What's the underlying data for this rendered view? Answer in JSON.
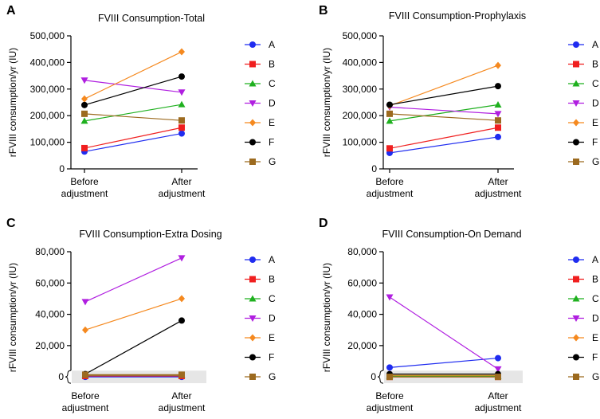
{
  "chart_data": [
    {
      "type": "line",
      "panel": "A",
      "title": "FVIII Consumption-Total",
      "ylabel": "rFVIII consumption/yr (IU)",
      "categories": [
        "Before\nadjustment",
        "After\nadjustment"
      ],
      "ylim": [
        0,
        500000
      ],
      "yticks": [
        0,
        100000,
        200000,
        300000,
        400000,
        500000
      ],
      "ytick_labels": [
        "0",
        "100,000",
        "200,000",
        "300,000",
        "400,000",
        "500,000"
      ],
      "series": [
        {
          "name": "A",
          "values": [
            65000,
            133000
          ]
        },
        {
          "name": "B",
          "values": [
            78000,
            155000
          ]
        },
        {
          "name": "C",
          "values": [
            180000,
            242000
          ]
        },
        {
          "name": "D",
          "values": [
            333000,
            288000
          ]
        },
        {
          "name": "E",
          "values": [
            263000,
            440000
          ]
        },
        {
          "name": "F",
          "values": [
            240000,
            347000
          ]
        },
        {
          "name": "G",
          "values": [
            207000,
            182000
          ]
        }
      ]
    },
    {
      "type": "line",
      "panel": "B",
      "title": "FVIII Consumption-Prophylaxis",
      "ylabel": "rFVIII consumption/yr (IU)",
      "categories": [
        "Before\nadjustment",
        "After\nadjustment"
      ],
      "ylim": [
        0,
        500000
      ],
      "yticks": [
        0,
        100000,
        200000,
        300000,
        400000,
        500000
      ],
      "ytick_labels": [
        "0",
        "100,000",
        "200,000",
        "300,000",
        "400,000",
        "500,000"
      ],
      "series": [
        {
          "name": "A",
          "values": [
            60000,
            120000
          ]
        },
        {
          "name": "B",
          "values": [
            77000,
            155000
          ]
        },
        {
          "name": "C",
          "values": [
            180000,
            241000
          ]
        },
        {
          "name": "D",
          "values": [
            232000,
            207000
          ]
        },
        {
          "name": "E",
          "values": [
            237000,
            389000
          ]
        },
        {
          "name": "F",
          "values": [
            241000,
            311000
          ]
        },
        {
          "name": "G",
          "values": [
            207000,
            182000
          ]
        }
      ]
    },
    {
      "type": "line",
      "panel": "C",
      "title": "FVIII Consumption-Extra Dosing",
      "ylabel": "rFVIII consumption/yr (IU)",
      "categories": [
        "Before\nadjustment",
        "After\nadjustment"
      ],
      "ylim": [
        -4000,
        80000
      ],
      "yticks": [
        0,
        20000,
        40000,
        60000,
        80000
      ],
      "ytick_labels": [
        "0",
        "20,000",
        "40,000",
        "60,000",
        "80,000"
      ],
      "zero_band": [
        -4000,
        4000
      ],
      "series": [
        {
          "name": "A",
          "values": [
            0,
            0
          ]
        },
        {
          "name": "B",
          "values": [
            600,
            600
          ]
        },
        {
          "name": "C",
          "values": [
            1200,
            1200
          ]
        },
        {
          "name": "D",
          "values": [
            48000,
            76000
          ]
        },
        {
          "name": "E",
          "values": [
            30000,
            50000
          ]
        },
        {
          "name": "F",
          "values": [
            1800,
            36000
          ]
        },
        {
          "name": "G",
          "values": [
            1400,
            1400
          ]
        }
      ]
    },
    {
      "type": "line",
      "panel": "D",
      "title": "FVIII Consumption-On Demand",
      "ylabel": "rFVIII consumption/yr (IU)",
      "categories": [
        "Before\nadjustment",
        "After\nadjustment"
      ],
      "ylim": [
        -4000,
        80000
      ],
      "yticks": [
        0,
        20000,
        40000,
        60000,
        80000
      ],
      "ytick_labels": [
        "0",
        "20,000",
        "40,000",
        "60,000",
        "80,000"
      ],
      "zero_band": [
        -4000,
        4000
      ],
      "series": [
        {
          "name": "A",
          "values": [
            6000,
            12000
          ]
        },
        {
          "name": "B",
          "values": [
            0,
            0
          ]
        },
        {
          "name": "C",
          "values": [
            600,
            600
          ]
        },
        {
          "name": "D",
          "values": [
            51000,
            5000
          ]
        },
        {
          "name": "E",
          "values": [
            1000,
            1000
          ]
        },
        {
          "name": "F",
          "values": [
            1800,
            1800
          ]
        },
        {
          "name": "G",
          "values": [
            0,
            0
          ]
        }
      ]
    }
  ],
  "legend_labels": [
    "A",
    "B",
    "C",
    "D",
    "E",
    "F",
    "G"
  ],
  "series_style": {
    "A": {
      "color": "#1f2cf0",
      "marker": "circle"
    },
    "B": {
      "color": "#f01f1f",
      "marker": "square"
    },
    "C": {
      "color": "#1fb01f",
      "marker": "triangle-up"
    },
    "D": {
      "color": "#b01fe0",
      "marker": "triangle-down"
    },
    "E": {
      "color": "#f5891f",
      "marker": "diamond"
    },
    "F": {
      "color": "#000000",
      "marker": "circle"
    },
    "G": {
      "color": "#9c6a1f",
      "marker": "square"
    }
  }
}
